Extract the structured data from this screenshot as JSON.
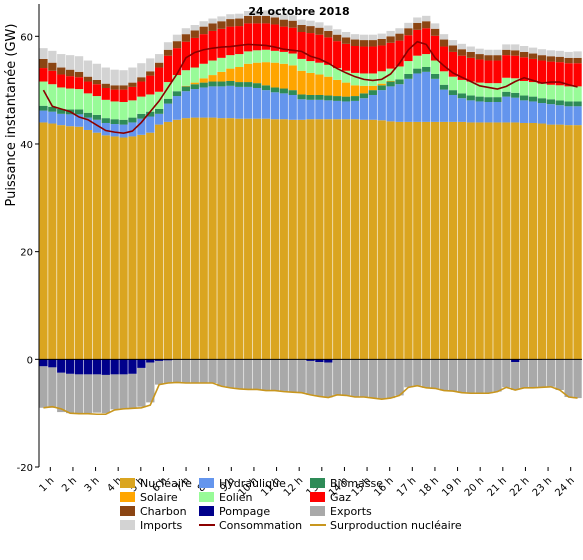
{
  "chart_data": {
    "type": "bar",
    "title": "24 octobre 2018",
    "ylabel": "Puissance instantanée (GW)",
    "xlabel": "",
    "ylim": [
      -20,
      66
    ],
    "yticks": [
      -20,
      0,
      20,
      40,
      60
    ],
    "xticklabels": [
      "1 h",
      "2 h",
      "3 h",
      "4 h",
      "5 h",
      "6 h",
      "7 h",
      "8 h",
      "9 h",
      "10 h",
      "11 h",
      "12 h",
      "13 h",
      "14 h",
      "15 h",
      "16 h",
      "17 h",
      "18 h",
      "19 h",
      "20 h",
      "21 h",
      "22 h",
      "23 h",
      "24 h"
    ],
    "series": [
      {
        "name": "Nucléaire",
        "color": "#DAA520",
        "values": [
          44,
          43.8,
          43.5,
          43.3,
          43.2,
          42.6,
          42.1,
          41.6,
          41.4,
          41.2,
          41.4,
          41.7,
          42.1,
          43.6,
          44.1,
          44.5,
          44.8,
          44.9,
          44.9,
          44.9,
          44.8,
          44.8,
          44.7,
          44.7,
          44.7,
          44.7,
          44.6,
          44.6,
          44.5,
          44.5,
          44.6,
          44.6,
          44.6,
          44.6,
          44.6,
          44.6,
          44.5,
          44.5,
          44.4,
          44.2,
          44.1,
          44.1,
          44.1,
          44.1,
          44.1,
          44.1,
          44.1,
          44.1,
          44.0,
          44.0,
          44.0,
          44.0,
          44.0,
          44.0,
          43.9,
          43.9,
          43.8,
          43.6,
          43.6,
          43.5,
          43.5
        ]
      },
      {
        "name": "Hydraulique",
        "color": "#6495ED",
        "values": [
          2.2,
          2.2,
          2.1,
          2.2,
          2.3,
          2.3,
          2.4,
          2.3,
          2.3,
          2.4,
          2.6,
          3.0,
          3.0,
          2.0,
          3.4,
          4.4,
          5.0,
          5.3,
          5.6,
          5.8,
          5.9,
          6.0,
          5.9,
          5.9,
          5.7,
          5.3,
          5.0,
          4.8,
          4.6,
          3.8,
          3.6,
          3.6,
          3.5,
          3.4,
          3.3,
          3.4,
          4.0,
          4.6,
          5.6,
          6.5,
          7.0,
          8.0,
          9.0,
          9.3,
          8.0,
          6.0,
          5.0,
          4.4,
          4.1,
          3.9,
          3.8,
          3.8,
          4.8,
          4.6,
          4.2,
          4.0,
          3.8,
          3.8,
          3.6,
          3.5,
          3.5
        ]
      },
      {
        "name": "Biomasse",
        "color": "#2E8B57",
        "values": [
          0.9,
          0.9,
          0.9,
          0.9,
          0.9,
          0.9,
          0.9,
          0.9,
          0.9,
          0.9,
          0.9,
          0.9,
          0.9,
          0.9,
          0.9,
          0.9,
          0.9,
          0.9,
          0.9,
          0.9,
          0.9,
          0.9,
          0.9,
          0.9,
          0.9,
          0.9,
          0.9,
          0.9,
          0.9,
          0.9,
          0.9,
          0.9,
          0.9,
          0.9,
          0.9,
          0.9,
          0.9,
          0.9,
          0.9,
          0.9,
          0.9,
          0.9,
          0.9,
          0.9,
          0.9,
          0.9,
          0.9,
          0.9,
          0.9,
          0.9,
          0.9,
          0.9,
          0.9,
          0.9,
          0.9,
          0.9,
          0.9,
          0.9,
          0.9,
          0.9,
          0.9
        ]
      },
      {
        "name": "Solaire",
        "color": "#FFA500",
        "values": [
          0,
          0,
          0,
          0,
          0,
          0,
          0,
          0,
          0,
          0,
          0,
          0,
          0,
          0,
          0,
          0,
          0.1,
          0.3,
          0.8,
          1.2,
          1.8,
          2.3,
          2.8,
          3.4,
          3.8,
          4.3,
          4.6,
          4.6,
          4.6,
          4.4,
          4.1,
          3.8,
          3.5,
          3.0,
          2.6,
          2.0,
          1.4,
          0.8,
          0.3,
          0.1,
          0,
          0,
          0,
          0,
          0,
          0,
          0,
          0,
          0,
          0,
          0,
          0,
          0,
          0,
          0,
          0,
          0,
          0,
          0,
          0,
          0
        ]
      },
      {
        "name": "Eolien",
        "color": "#98FB98",
        "values": [
          4.5,
          4.2,
          4.0,
          3.9,
          3.8,
          3.6,
          3.5,
          3.4,
          3.3,
          3.3,
          3.2,
          3.2,
          3.2,
          3.2,
          3.1,
          3.0,
          2.9,
          2.8,
          2.7,
          2.7,
          2.6,
          2.5,
          2.4,
          2.3,
          2.3,
          2.3,
          2.2,
          2.2,
          2.2,
          2.2,
          2.2,
          2.2,
          2.2,
          2.2,
          2.2,
          2.3,
          2.3,
          2.3,
          2.3,
          2.3,
          2.4,
          2.4,
          2.4,
          2.4,
          2.5,
          2.5,
          2.5,
          2.5,
          2.6,
          2.6,
          2.6,
          2.6,
          2.6,
          2.7,
          2.7,
          2.7,
          2.7,
          2.7,
          2.8,
          2.8,
          2.8
        ]
      },
      {
        "name": "Gaz",
        "color": "#FF0000",
        "values": [
          2.5,
          2.5,
          2.4,
          2.3,
          2.2,
          2.2,
          2.2,
          2.2,
          2.2,
          2.3,
          2.5,
          2.8,
          3.5,
          4.5,
          4.9,
          5.0,
          5.3,
          5.5,
          5.5,
          5.5,
          5.4,
          5.3,
          5.2,
          5.2,
          5.0,
          4.9,
          4.9,
          4.7,
          4.8,
          5.0,
          5.2,
          5.2,
          5.1,
          5.0,
          5.0,
          5.0,
          5.0,
          5.0,
          4.8,
          4.8,
          4.8,
          4.8,
          4.8,
          4.8,
          4.6,
          4.6,
          4.6,
          4.5,
          4.4,
          4.3,
          4.2,
          4.2,
          4.2,
          4.2,
          4.4,
          4.3,
          4.3,
          4.3,
          4.3,
          4.3,
          4.3
        ]
      },
      {
        "name": "Charbon",
        "color": "#8B4513",
        "values": [
          1.7,
          1.5,
          1.3,
          1.2,
          1.0,
          0.9,
          0.8,
          0.8,
          0.8,
          0.8,
          0.8,
          0.8,
          0.8,
          0.9,
          1.1,
          1.3,
          1.4,
          1.4,
          1.4,
          1.4,
          1.4,
          1.4,
          1.4,
          1.4,
          1.4,
          1.4,
          1.3,
          1.3,
          1.3,
          1.3,
          1.3,
          1.3,
          1.2,
          1.2,
          1.2,
          1.2,
          1.2,
          1.2,
          1.2,
          1.2,
          1.3,
          1.3,
          1.3,
          1.3,
          1.3,
          1.3,
          1.2,
          1.2,
          1.1,
          1.0,
          1.0,
          1.0,
          1.0,
          1.0,
          1.0,
          1.0,
          1.0,
          1.0,
          1.0,
          1.0,
          1.0
        ]
      },
      {
        "name": "Imports",
        "color": "#D3D3D3",
        "values": [
          2.0,
          2.2,
          2.5,
          2.7,
          2.9,
          3.0,
          3.0,
          3.0,
          2.9,
          2.8,
          2.8,
          2.6,
          2.4,
          1.6,
          1.4,
          1.2,
          1.1,
          1.0,
          1.0,
          0.9,
          0.9,
          0.9,
          0.9,
          0.9,
          0.9,
          1.0,
          1.0,
          1.0,
          1.0,
          1.0,
          1.0,
          1.0,
          1.0,
          1.0,
          1.0,
          1.0,
          1.0,
          1.0,
          1.0,
          1.0,
          1.0,
          1.0,
          1.0,
          1.0,
          1.0,
          1.0,
          1.0,
          1.0,
          1.0,
          1.0,
          1.0,
          1.0,
          1.0,
          1.1,
          1.1,
          1.1,
          1.1,
          1.1,
          1.1,
          1.1,
          1.2
        ]
      },
      {
        "name": "Pompage",
        "color": "#00008B",
        "values": [
          -1.3,
          -1.5,
          -2.5,
          -2.7,
          -2.8,
          -2.8,
          -2.8,
          -2.9,
          -2.8,
          -2.8,
          -2.7,
          -1.6,
          -0.6,
          -0.3,
          -0.2,
          0,
          0,
          0,
          0,
          0,
          0,
          0,
          0,
          0,
          0,
          0,
          0,
          0,
          0,
          0,
          -0.3,
          -0.5,
          -0.6,
          0,
          0,
          0,
          0,
          0,
          0,
          0,
          0,
          0,
          0,
          0,
          0,
          0,
          0,
          0,
          0,
          0,
          0,
          0,
          0,
          -0.5,
          0,
          0,
          0,
          0,
          0,
          0,
          0
        ]
      },
      {
        "name": "Exports",
        "color": "#A9A9A9",
        "values": [
          -7.7,
          -7.5,
          -7.3,
          -7.3,
          -7.2,
          -7.2,
          -7.1,
          -7.1,
          -6.5,
          -6.4,
          -6.4,
          -7.2,
          -7.4,
          -4.4,
          -4.3,
          -4.3,
          -4.4,
          -4.4,
          -4.4,
          -4.4,
          -5.0,
          -5.3,
          -5.5,
          -5.6,
          -5.6,
          -5.8,
          -5.8,
          -6.0,
          -6.1,
          -6.2,
          -6.3,
          -6.4,
          -6.5,
          -6.6,
          -6.7,
          -7.0,
          -7.0,
          -7.2,
          -7.4,
          -7.2,
          -6.7,
          -5.2,
          -4.9,
          -5.3,
          -5.4,
          -5.8,
          -5.9,
          -6.2,
          -6.3,
          -6.3,
          -6.3,
          -6.0,
          -5.2,
          -5.2,
          -5.3,
          -5.3,
          -5.2,
          -5.1,
          -5.7,
          -7.0,
          -7.2
        ]
      }
    ],
    "lines": [
      {
        "name": "Consommation",
        "color": "#8B0000",
        "values": [
          50,
          47,
          46.5,
          46,
          45,
          44.5,
          43.5,
          42.5,
          42.2,
          42,
          42.4,
          44,
          46,
          48,
          50.5,
          53,
          56,
          57,
          57.5,
          57.8,
          58,
          58.1,
          58.3,
          58.5,
          58.4,
          58.3,
          58,
          57.6,
          57.4,
          57.2,
          56.3,
          55.8,
          55,
          54,
          53.2,
          52.5,
          52,
          51.8,
          52,
          53,
          55,
          57.5,
          59,
          58.5,
          56,
          54.5,
          53.2,
          52.4,
          51.6,
          50.8,
          50.5,
          50.2,
          50.7,
          51.6,
          52.3,
          51.8,
          51.3,
          51.5,
          51.5,
          51.0,
          50.6
        ]
      },
      {
        "name": "Surproduction nucléaire",
        "color": "#C8961E",
        "values": [
          -9,
          -8.8,
          -9.2,
          -10,
          -10.1,
          -10.1,
          -10.2,
          -10.2,
          -9.4,
          -9.2,
          -9.1,
          -9,
          -8.5,
          -4.7,
          -4.4,
          -4.3,
          -4.4,
          -4.4,
          -4.4,
          -4.4,
          -5,
          -5.3,
          -5.5,
          -5.6,
          -5.6,
          -5.8,
          -5.8,
          -6,
          -6.1,
          -6.2,
          -6.6,
          -6.9,
          -7.1,
          -6.6,
          -6.7,
          -7,
          -7,
          -7.2,
          -7.4,
          -7.2,
          -6.7,
          -5.2,
          -4.9,
          -5.3,
          -5.4,
          -5.8,
          -5.9,
          -6.2,
          -6.3,
          -6.3,
          -6.3,
          -6,
          -5.2,
          -5.7,
          -5.3,
          -5.3,
          -5.2,
          -5.1,
          -5.7,
          -7,
          -7.2
        ]
      }
    ],
    "grid": false,
    "legend": {
      "position": "bottom",
      "rows": [
        [
          "Nucléaire",
          "Hydraulique",
          "Biomasse"
        ],
        [
          "Solaire",
          "Eolien",
          "Gaz"
        ],
        [
          "Charbon",
          "Pompage",
          "Exports"
        ],
        [
          "Imports",
          "Consommation",
          "Surproduction nucléaire"
        ]
      ]
    }
  }
}
